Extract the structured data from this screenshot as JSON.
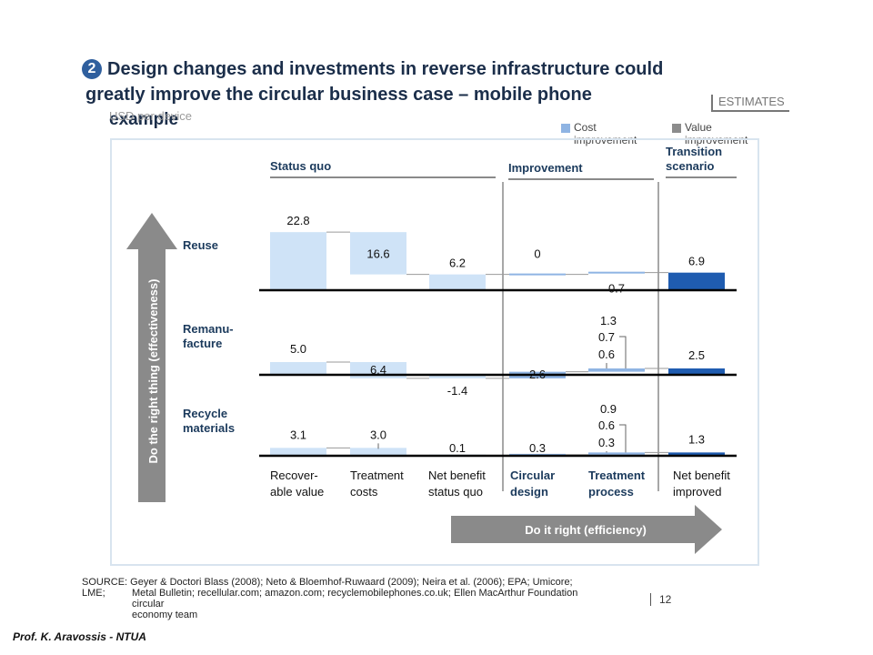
{
  "slide": {
    "step_number": "2",
    "title_line1": "Design changes and investments in reverse infrastructure could",
    "title_line2": "greatly improve the circular business case – mobile phone",
    "title_line3": "example",
    "subtitle": "USD per device",
    "estimate_label": "ESTIMATES",
    "page_number": "12",
    "author": "Prof. K. Aravossis - NTUA",
    "source_line1": "SOURCE: Geyer & Doctori Blass (2008); Neto & Bloemhof-Ruwaard (2009); Neira et al. (2006); EPA; Umicore;",
    "source_line2a": "LME;",
    "source_line2b": "Metal Bulletin; recellular.com; amazon.com; recyclemobilephones.co.uk; Ellen MacArthur Foundation",
    "source_line3": "circular",
    "source_line4": "economy team"
  },
  "legend": {
    "cost_label_1": "Cost",
    "cost_label_2": "improvement",
    "value_label_1": "Value",
    "value_label_2": "improvement",
    "cost_color": "#8fb4e3",
    "value_color": "#8c8c8c"
  },
  "arrows": {
    "vertical_label": "Do the right thing (effectiveness)",
    "horizontal_label": "Do it right (efficiency)"
  },
  "chart_data": {
    "type": "bar",
    "group_headers": [
      "Status quo",
      "Improvement",
      "Transition scenario"
    ],
    "categories": [
      {
        "line1": "Recover-",
        "line2": "able value",
        "emphasis": false
      },
      {
        "line1": "Treatment",
        "line2": "costs",
        "emphasis": false
      },
      {
        "line1": "Net benefit",
        "line2": "status quo",
        "emphasis": false
      },
      {
        "line1": "Circular",
        "line2": "design",
        "emphasis": true
      },
      {
        "line1": "Treatment",
        "line2": "process",
        "emphasis": true
      },
      {
        "line1": "Net benefit",
        "line2": "improved",
        "emphasis": false
      }
    ],
    "rows": [
      {
        "label_line1": "Reuse",
        "label_line2": "",
        "values": [
          22.8,
          16.6,
          6.2,
          0,
          0.7,
          6.9
        ],
        "labels": [
          "22.8",
          "16.6",
          "6.2",
          "0",
          "0.7",
          "6.9"
        ],
        "treatment_breakdown": []
      },
      {
        "label_line1": "Remanu-",
        "label_line2": "facture",
        "values": [
          5.0,
          6.4,
          -1.4,
          2.6,
          1.3,
          2.5
        ],
        "labels": [
          "5.0",
          "6.4",
          "-1.4",
          "2.6",
          "1.3",
          "2.5"
        ],
        "treatment_breakdown": [
          "0.7",
          "0.6"
        ]
      },
      {
        "label_line1": "Recycle",
        "label_line2": "materials",
        "values": [
          3.1,
          3.0,
          0.1,
          0.3,
          0.9,
          1.3
        ],
        "labels": [
          "3.1",
          "3.0",
          "0.1",
          "0.3",
          "0.9",
          "1.3"
        ],
        "treatment_breakdown": [
          "0.6",
          "0.3"
        ]
      }
    ],
    "colors": {
      "status_quo": "#cfe3f7",
      "improvement": "#8fb4e3",
      "transition": "#1f5cb0"
    }
  }
}
